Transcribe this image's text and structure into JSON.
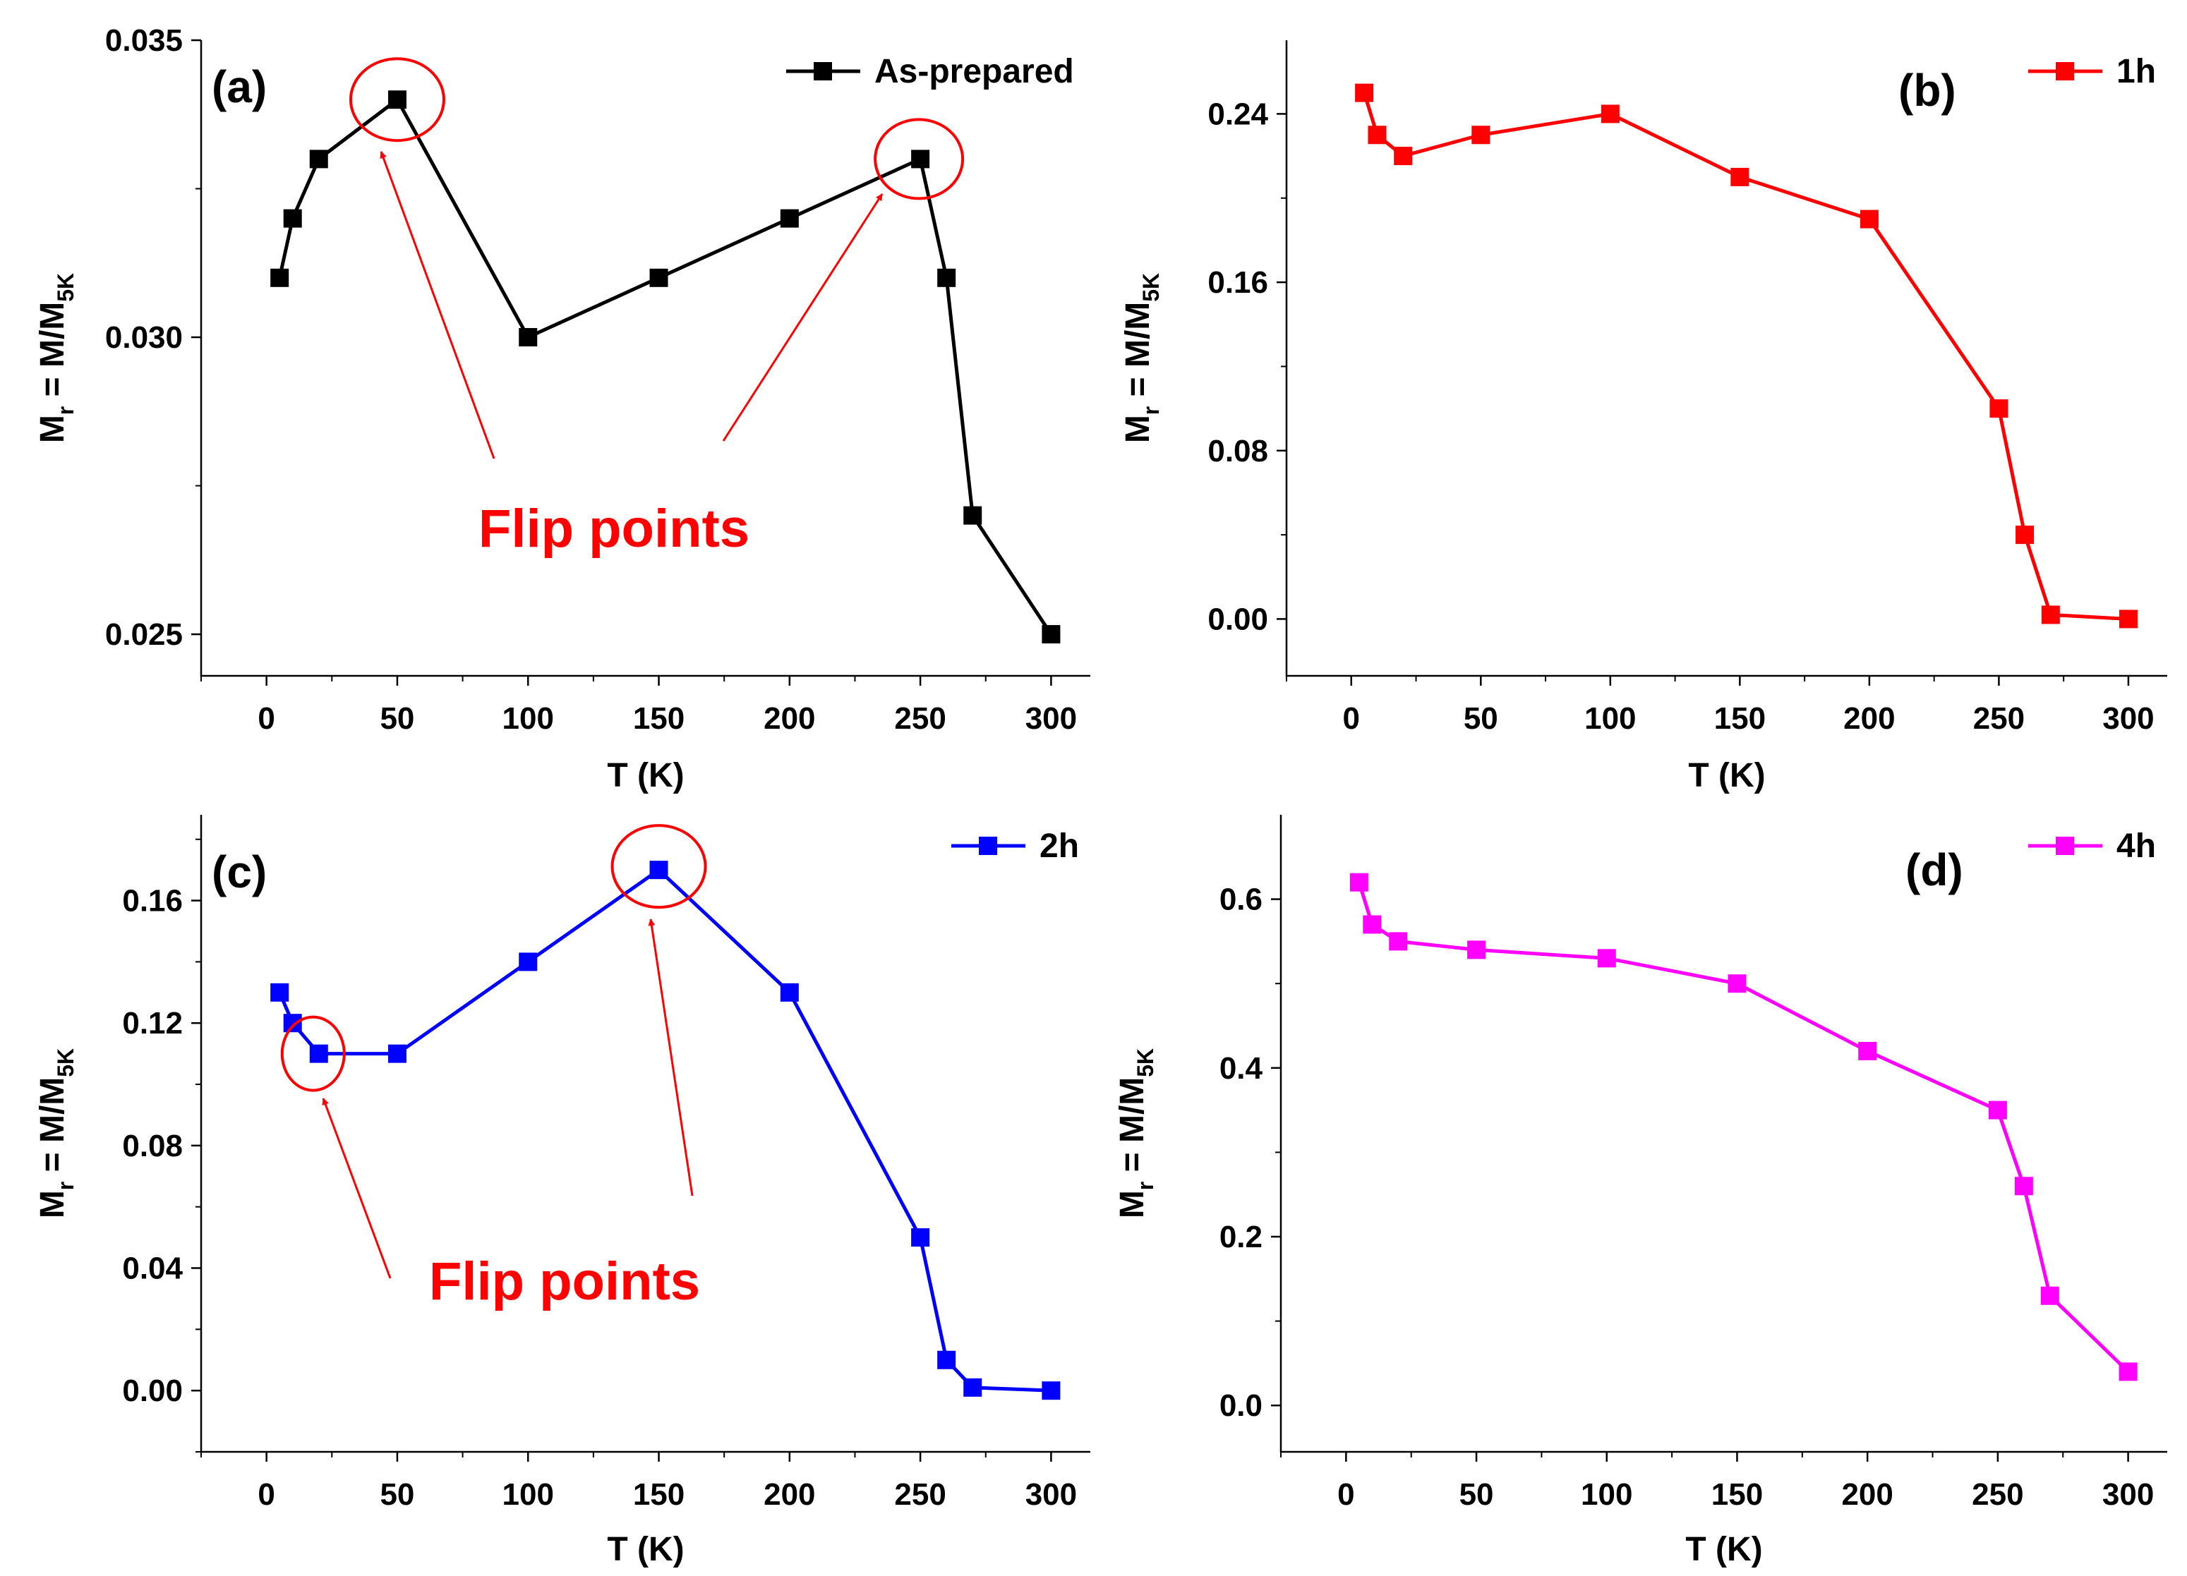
{
  "chart_data": [
    {
      "type": "line",
      "panel_label": "(a)",
      "xlabel": "T (K)",
      "ylabel": {
        "main": "M",
        "sub1": "r",
        "mid": " = M/M",
        "sub2": "5K"
      },
      "xlim": [
        -25,
        315
      ],
      "ylim": [
        0.0243,
        0.035
      ],
      "xticks": [
        0,
        50,
        100,
        150,
        200,
        250,
        300
      ],
      "yticks": [
        0.025,
        0.03,
        0.035
      ],
      "ytick_labels": [
        "0.025",
        "0.030",
        "0.035"
      ],
      "color": "#000000",
      "series": [
        {
          "name": "As-prepared",
          "x": [
            5,
            10,
            20,
            50,
            100,
            150,
            200,
            250,
            260,
            270,
            300
          ],
          "y": [
            0.031,
            0.032,
            0.033,
            0.034,
            0.03,
            0.031,
            0.032,
            0.033,
            0.031,
            0.027,
            0.025
          ]
        }
      ],
      "legend_position": "top-right",
      "annotations": {
        "text": "Flip points",
        "highlight_x": [
          50,
          250
        ],
        "color": "#ff0000"
      }
    },
    {
      "type": "line",
      "panel_label": "(b)",
      "xlabel": "T (K)",
      "ylabel": {
        "main": "M",
        "sub1": "r",
        "mid": " = M/M",
        "sub2": "5K"
      },
      "xlim": [
        -25,
        315
      ],
      "ylim": [
        -0.027,
        0.275
      ],
      "xticks": [
        0,
        50,
        100,
        150,
        200,
        250,
        300
      ],
      "yticks": [
        0.0,
        0.08,
        0.16,
        0.24
      ],
      "ytick_labels": [
        "0.00",
        "0.08",
        "0.16",
        "0.24"
      ],
      "color": "#ff0000",
      "series": [
        {
          "name": "1h",
          "x": [
            5,
            10,
            20,
            50,
            100,
            150,
            200,
            250,
            260,
            270,
            300
          ],
          "y": [
            0.25,
            0.23,
            0.22,
            0.23,
            0.24,
            0.21,
            0.19,
            0.1,
            0.04,
            0.002,
            0.0
          ]
        }
      ],
      "legend_position": "top-right"
    },
    {
      "type": "line",
      "panel_label": "(c)",
      "xlabel": "T (K)",
      "ylabel": {
        "main": "M",
        "sub1": "r",
        "mid": " = M/M",
        "sub2": "5K"
      },
      "xlim": [
        -25,
        315
      ],
      "ylim": [
        -0.02,
        0.188
      ],
      "xticks": [
        0,
        50,
        100,
        150,
        200,
        250,
        300
      ],
      "yticks": [
        0.0,
        0.04,
        0.08,
        0.12,
        0.16
      ],
      "ytick_labels": [
        "0.00",
        "0.04",
        "0.08",
        "0.12",
        "0.16"
      ],
      "color": "#0000ff",
      "series": [
        {
          "name": "2h",
          "x": [
            5,
            10,
            20,
            50,
            100,
            150,
            200,
            250,
            260,
            270,
            300
          ],
          "y": [
            0.13,
            0.12,
            0.11,
            0.11,
            0.14,
            0.17,
            0.13,
            0.05,
            0.01,
            0.001,
            0.0
          ]
        }
      ],
      "legend_position": "top-right",
      "annotations": {
        "text": "Flip points",
        "highlight_x": [
          20,
          150
        ],
        "color": "#ff0000"
      }
    },
    {
      "type": "line",
      "panel_label": "(d)",
      "xlabel": "T (K)",
      "ylabel": {
        "main": "M",
        "sub1": "r",
        "mid": " = M/M",
        "sub2": "5K"
      },
      "xlim": [
        -25,
        315
      ],
      "ylim": [
        -0.055,
        0.7
      ],
      "xticks": [
        0,
        50,
        100,
        150,
        200,
        250,
        300
      ],
      "yticks": [
        0.0,
        0.2,
        0.4,
        0.6
      ],
      "ytick_labels": [
        "0.0",
        "0.2",
        "0.4",
        "0.6"
      ],
      "color": "#ff00ff",
      "series": [
        {
          "name": "4h",
          "x": [
            5,
            10,
            20,
            50,
            100,
            150,
            200,
            250,
            260,
            270,
            300
          ],
          "y": [
            0.62,
            0.57,
            0.55,
            0.54,
            0.53,
            0.5,
            0.42,
            0.35,
            0.26,
            0.13,
            0.04
          ]
        }
      ],
      "legend_position": "top-right"
    }
  ]
}
